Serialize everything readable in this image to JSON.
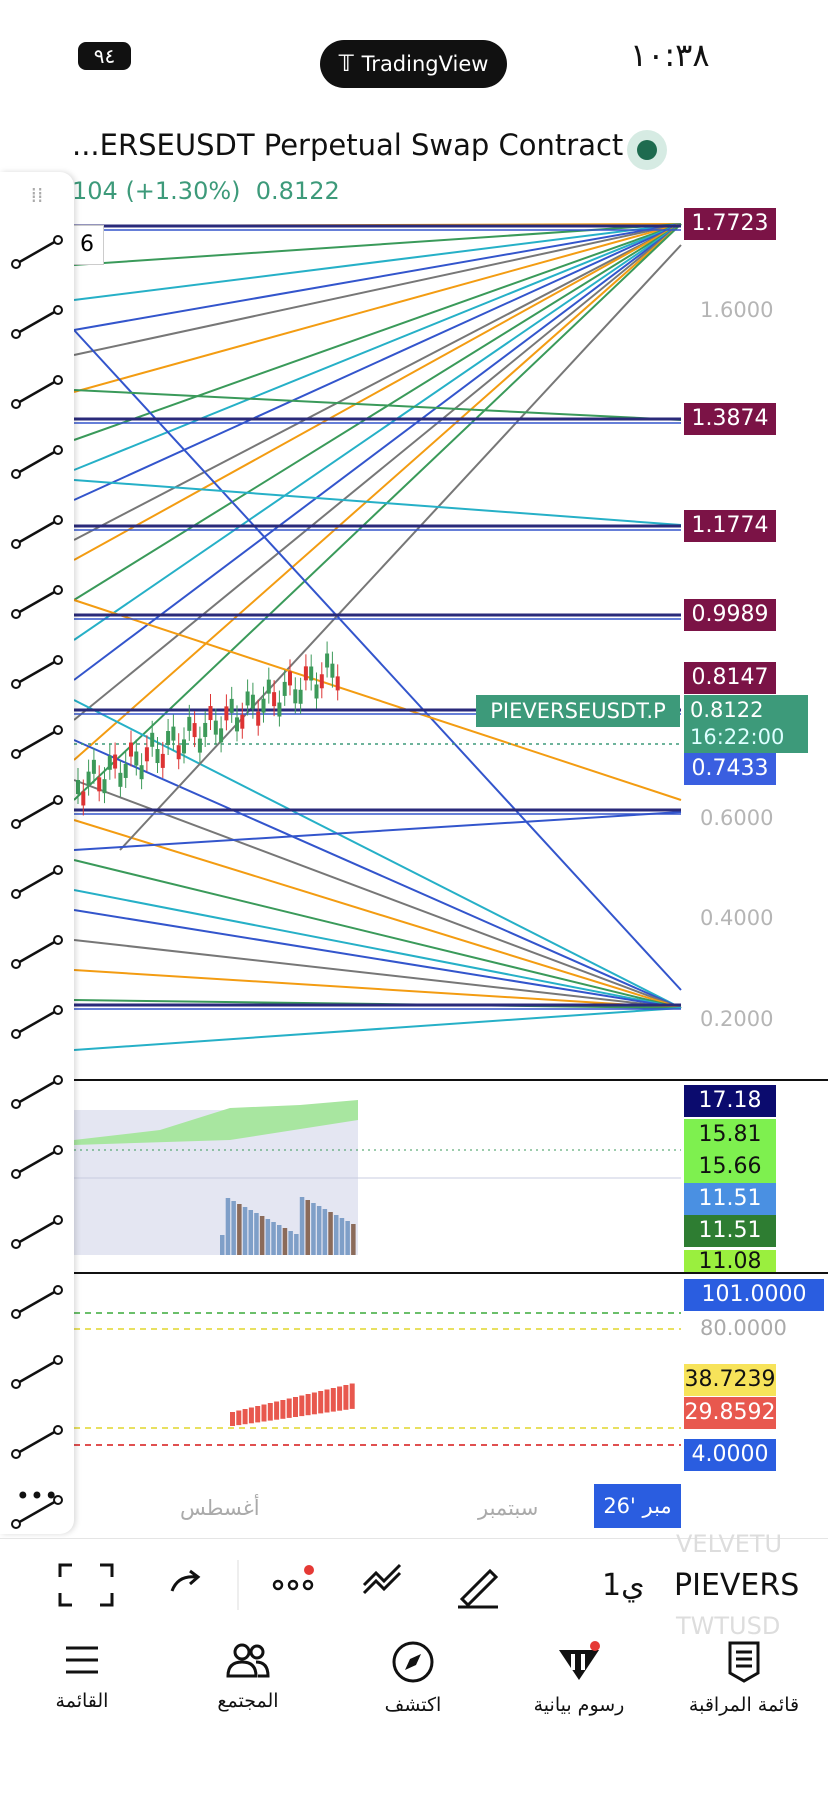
{
  "status_bar": {
    "time": "١٠:٣٨",
    "battery": "٩٤",
    "app": "TradingView"
  },
  "header": {
    "symbol": "...ERSEUSDT Perpetual Swap Contract",
    "change": "104 (+1.30%)",
    "price": "0.8122",
    "interval_box": "6"
  },
  "price_axis": [
    "1.6000",
    "0.6000",
    "0.4000",
    "0.2000"
  ],
  "price_labels": [
    "1.7723",
    "1.3874",
    "1.1774",
    "0.9989",
    "0.8147",
    "0.7433"
  ],
  "current_price": {
    "symbol": "PIEVERSEUSDT.P",
    "price": "0.8122",
    "countdown": "16:22:00"
  },
  "indicator_1_labels": [
    "17.18",
    "15.81",
    "15.66",
    "11.51",
    "11.51",
    "11.08"
  ],
  "indicator_2_labels": [
    "101.0000",
    "80.0000",
    "38.7239",
    "29.8592",
    "4.0000"
  ],
  "time_axis": [
    "أغسطس",
    "سبتمبر",
    "مبر '26"
  ],
  "toolbar": {
    "symbol": "PIEVERS",
    "interval": "1ي",
    "watch_above": "VELVETU",
    "watch_below": "TWTUSD"
  },
  "nav": [
    "القائمة",
    "المجتمع",
    "اكتشف",
    "رسوم بيانية",
    "قائمة المراقبة"
  ]
}
